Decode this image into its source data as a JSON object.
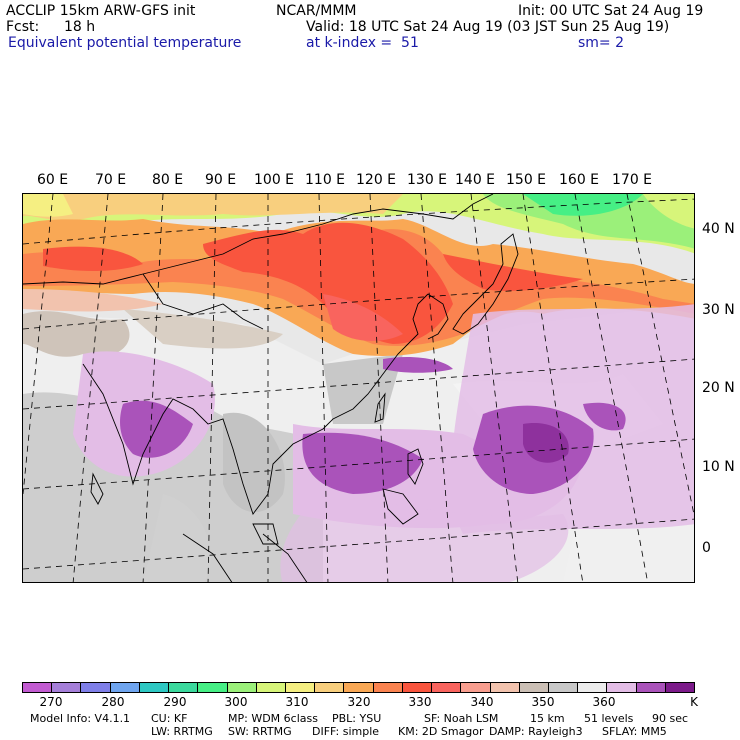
{
  "header": {
    "model": "ACCLIP 15km ARW-GFS init",
    "org": "NCAR/MMM",
    "init": "Init: 00 UTC Sat 24 Aug 19",
    "fcst_label": "Fcst:",
    "fcst_value": "18 h",
    "valid": "Valid: 18 UTC Sat 24 Aug 19 (03 JST Sun 25 Aug 19)",
    "field": "Equivalent potential temperature",
    "level": "at k-index =  51",
    "smooth": "sm= 2"
  },
  "map": {
    "lon_labels": [
      "60 E",
      "70 E",
      "80 E",
      "90 E",
      "100 E",
      "110 E",
      "120 E",
      "130 E",
      "140 E",
      "150 E",
      "160 E",
      "170 E"
    ],
    "lat_labels": [
      "40 N",
      "30 N",
      "20 N",
      "10 N",
      "0"
    ]
  },
  "colorbar": {
    "colors": [
      "#c25bd1",
      "#a57fd9",
      "#7f7fe8",
      "#6fa5ef",
      "#2ec8c3",
      "#3bd99d",
      "#46ef85",
      "#9bf07a",
      "#d7f57a",
      "#f5ef82",
      "#f8cf7e",
      "#f9a855",
      "#fa8350",
      "#f9553e",
      "#f9645e",
      "#f89e8f",
      "#f2c3ae",
      "#cbbfb5",
      "#c8c8c8",
      "#ececec",
      "#e3bde6",
      "#aa53ba",
      "#7c1a8a"
    ],
    "tick_labels": [
      "270",
      "280",
      "290",
      "300",
      "310",
      "320",
      "330",
      "340",
      "350",
      "360"
    ],
    "unit": "K"
  },
  "footer": {
    "line1": [
      "Model Info: V4.1.1",
      "CU: KF",
      "MP: WDM 6class",
      "PBL: YSU",
      "SF: Noah LSM",
      "15 km",
      "51 levels",
      "90 sec"
    ],
    "line2": [
      "LW: RRTMG",
      "SW: RRTMG",
      "DIFF: simple",
      "KM: 2D Smagor",
      "DAMP: Rayleigh3",
      "SFLAY: MM5"
    ]
  }
}
